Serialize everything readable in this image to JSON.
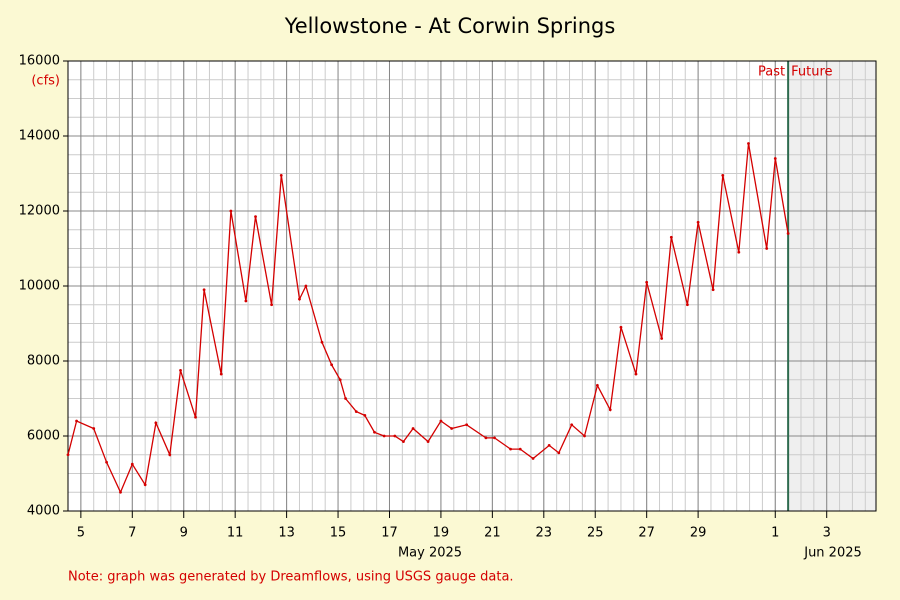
{
  "chart_data": {
    "type": "line",
    "title": "Yellowstone - At Corwin Springs",
    "y_label": "(cfs)",
    "x_group_labels": [
      "May 2025",
      "Jun 2025"
    ],
    "note": "Note: graph was generated by Dreamflows, using USGS gauge data.",
    "annotations": [
      "Past",
      "Future"
    ],
    "forecast_start": "2025-06-01 12:00",
    "grid": true,
    "xlim": [
      "2025-05-04 12:00",
      "2025-06-04 22:00"
    ],
    "xticks": [
      {
        "value": "2025-05-05 00:00",
        "label": "5"
      },
      {
        "value": "2025-05-07 00:00",
        "label": "7"
      },
      {
        "value": "2025-05-09 00:00",
        "label": "9"
      },
      {
        "value": "2025-05-11 00:00",
        "label": "11"
      },
      {
        "value": "2025-05-13 00:00",
        "label": "13"
      },
      {
        "value": "2025-05-15 00:00",
        "label": "15"
      },
      {
        "value": "2025-05-17 00:00",
        "label": "17"
      },
      {
        "value": "2025-05-19 00:00",
        "label": "19"
      },
      {
        "value": "2025-05-21 00:00",
        "label": "21"
      },
      {
        "value": "2025-05-23 00:00",
        "label": "23"
      },
      {
        "value": "2025-05-25 00:00",
        "label": "25"
      },
      {
        "value": "2025-05-27 00:00",
        "label": "27"
      },
      {
        "value": "2025-05-29 00:00",
        "label": "29"
      },
      {
        "value": "2025-06-01 00:00",
        "label": "1"
      },
      {
        "value": "2025-06-03 00:00",
        "label": "3"
      }
    ],
    "ylim": [
      4000,
      16000
    ],
    "yticks": [
      4000,
      6000,
      8000,
      10000,
      12000,
      14000,
      16000
    ],
    "x": [
      "2025-05-04 12:00",
      "2025-05-04 20:00",
      "2025-05-05 12:00",
      "2025-05-06 00:00",
      "2025-05-06 13:00",
      "2025-05-07 00:00",
      "2025-05-07 12:00",
      "2025-05-07 22:00",
      "2025-05-08 11:00",
      "2025-05-08 21:00",
      "2025-05-09 11:00",
      "2025-05-09 19:00",
      "2025-05-10 11:00",
      "2025-05-10 20:00",
      "2025-05-11 10:00",
      "2025-05-11 19:00",
      "2025-05-12 10:00",
      "2025-05-12 19:00",
      "2025-05-13 12:00",
      "2025-05-13 18:00",
      "2025-05-14 09:00",
      "2025-05-14 18:00",
      "2025-05-15 02:00",
      "2025-05-15 07:00",
      "2025-05-15 17:00",
      "2025-05-16 01:00",
      "2025-05-16 10:00",
      "2025-05-16 19:00",
      "2025-05-17 05:00",
      "2025-05-17 13:00",
      "2025-05-17 22:00",
      "2025-05-18 12:00",
      "2025-05-19 00:00",
      "2025-05-19 10:00",
      "2025-05-20 00:00",
      "2025-05-20 18:00",
      "2025-05-21 02:00",
      "2025-05-21 17:00",
      "2025-05-22 02:00",
      "2025-05-22 14:00",
      "2025-05-23 05:00",
      "2025-05-23 14:00",
      "2025-05-24 02:00",
      "2025-05-24 14:00",
      "2025-05-25 02:00",
      "2025-05-25 14:00",
      "2025-05-26 00:00",
      "2025-05-26 14:00",
      "2025-05-27 00:00",
      "2025-05-27 14:00",
      "2025-05-27 23:00",
      "2025-05-28 14:00",
      "2025-05-29 00:00",
      "2025-05-29 14:00",
      "2025-05-29 23:00",
      "2025-05-30 14:00",
      "2025-05-30 23:00",
      "2025-05-31 16:00",
      "2025-06-01 00:00",
      "2025-06-01 12:00"
    ],
    "series": [
      {
        "name": "Flow",
        "color": "#d40000",
        "values": [
          5500,
          6400,
          6200,
          5300,
          4500,
          5250,
          4700,
          6350,
          5500,
          7750,
          6500,
          9900,
          7650,
          12000,
          9600,
          11850,
          9500,
          12950,
          9650,
          10000,
          8500,
          7900,
          7500,
          7000,
          6650,
          6550,
          6100,
          6000,
          6000,
          5850,
          6200,
          5850,
          6400,
          6200,
          6300,
          5950,
          5950,
          5650,
          5650,
          5400,
          5750,
          5550,
          6300,
          6000,
          7350,
          6700,
          8900,
          7650,
          10100,
          8600,
          11300,
          9500,
          11700,
          9900,
          12950,
          10900,
          13800,
          11000,
          13400,
          11400
        ]
      }
    ]
  }
}
